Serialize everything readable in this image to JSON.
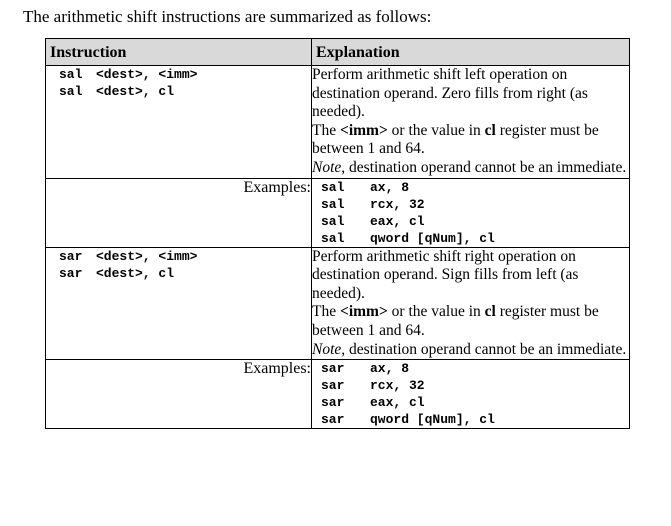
{
  "intro_text": "The arithmetic shift instructions are summarized as follows:",
  "table": {
    "headers": [
      "Instruction",
      "Explanation"
    ],
    "groups": [
      {
        "instructions": [
          {
            "mnemonic": "sal",
            "operands": "<dest>, <imm>"
          },
          {
            "mnemonic": "sal",
            "operands": "<dest>, cl"
          }
        ],
        "explanation": {
          "line1": "Perform arithmetic shift left operation on destination operand.  Zero fills from right (as needed).",
          "the": "The ",
          "imm": "<imm>",
          "or_value": " or the value in ",
          "cl": "cl",
          "register_text": " register must be between 1 and 64.",
          "note_label": "Note",
          "note_text": ", destination operand cannot be an immediate."
        },
        "examples_label": "Examples:",
        "examples": [
          {
            "mnemonic": "sal",
            "operands": "ax, 8"
          },
          {
            "mnemonic": "sal",
            "operands": "rcx, 32"
          },
          {
            "mnemonic": "sal",
            "operands": "eax, cl"
          },
          {
            "mnemonic": "sal",
            "operands": "qword [qNum], cl"
          }
        ]
      },
      {
        "instructions": [
          {
            "mnemonic": "sar",
            "operands": "<dest>, <imm>"
          },
          {
            "mnemonic": "sar",
            "operands": "<dest>, cl"
          }
        ],
        "explanation": {
          "line1": "Perform arithmetic shift right operation on destination operand.  Sign fills from left (as needed).",
          "the": "The ",
          "imm": "<imm>",
          "or_value": " or the value in ",
          "cl": "cl",
          "register_text": " register must be between 1 and 64.",
          "note_label": "Note",
          "note_text": ", destination operand cannot be an immediate."
        },
        "examples_label": "Examples:",
        "examples": [
          {
            "mnemonic": "sar",
            "operands": "ax, 8"
          },
          {
            "mnemonic": "sar",
            "operands": "rcx, 32"
          },
          {
            "mnemonic": "sar",
            "operands": "eax, cl"
          },
          {
            "mnemonic": "sar",
            "operands": "qword [qNum], cl"
          }
        ]
      }
    ]
  }
}
